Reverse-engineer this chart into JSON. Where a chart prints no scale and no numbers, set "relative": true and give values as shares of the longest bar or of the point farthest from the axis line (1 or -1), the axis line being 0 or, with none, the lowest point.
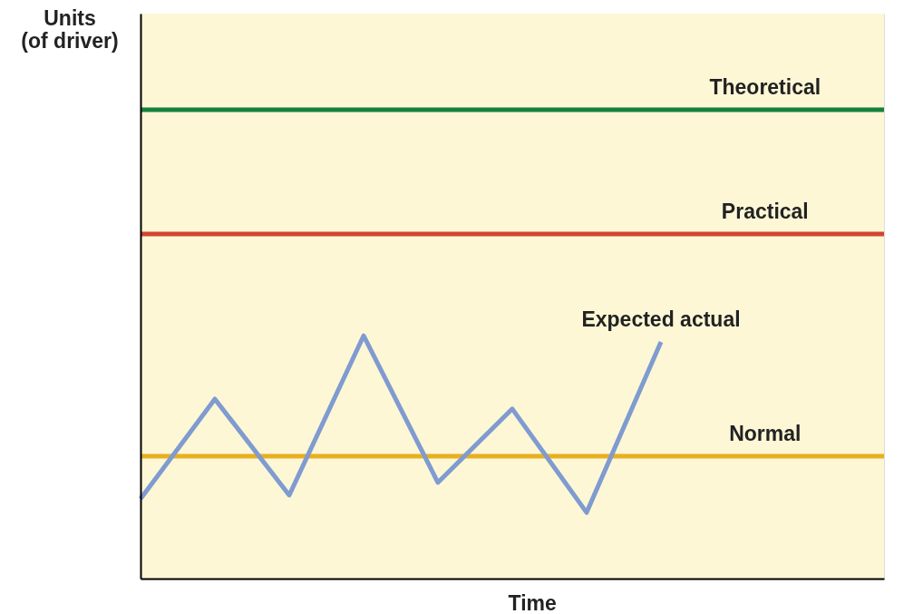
{
  "chart_data": {
    "type": "line",
    "relative": true,
    "xlabel": "Time",
    "ylabel": "Units\n(of driver)",
    "marker": "none",
    "line_style": "solid",
    "categories": [
      null,
      null,
      null,
      null,
      null,
      null,
      null,
      null,
      null,
      null,
      null
    ],
    "series": [
      {
        "name": "Theoretical",
        "color": "#15803d",
        "values": [
          1,
          1,
          1,
          1,
          1,
          1,
          1,
          1,
          1,
          1,
          1
        ]
      },
      {
        "name": "Practical",
        "color": "#d2452f",
        "values": [
          0.735,
          0.735,
          0.735,
          0.735,
          0.735,
          0.735,
          0.735,
          0.735,
          0.735,
          0.735,
          0.735
        ]
      },
      {
        "name": "Normal",
        "color": "#e8b020",
        "values": [
          0.261,
          0.261,
          0.261,
          0.261,
          0.261,
          0.261,
          0.261,
          0.261,
          0.261,
          0.261,
          0.261
        ]
      },
      {
        "name": "Expected actual",
        "color": "#7f9bd0",
        "values": [
          0.17,
          0.383,
          0.178,
          0.518,
          0.205,
          0.362,
          0.141,
          0.505,
          null,
          null,
          null
        ]
      }
    ]
  }
}
